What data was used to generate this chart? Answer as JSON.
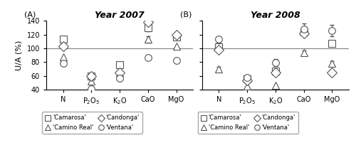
{
  "title_2007": "Year 2007",
  "title_2008": "Year 2008",
  "xlabel": [
    "N",
    "P$_2$O$_5$",
    "K$_2$O",
    "CaO",
    "MgO"
  ],
  "ylabel": "U/A (%)",
  "ylim": [
    40,
    140
  ],
  "yticks": [
    40,
    60,
    80,
    100,
    120,
    140
  ],
  "hline": 100,
  "data_2007": {
    "Camarosa": {
      "values": [
        113,
        60,
        76,
        130,
        116
      ],
      "yerr": [
        0,
        0,
        0,
        5,
        0
      ]
    },
    "Camino Real": {
      "values": [
        88,
        52,
        65,
        113,
        103
      ],
      "yerr": [
        0,
        0,
        0,
        5,
        0
      ]
    },
    "Candonga": {
      "values": [
        103,
        60,
        65,
        138,
        120
      ],
      "yerr": [
        0,
        0,
        0,
        0,
        0
      ]
    },
    "Ventana": {
      "values": [
        78,
        41,
        57,
        87,
        82
      ],
      "yerr": [
        0,
        0,
        0,
        0,
        0
      ]
    }
  },
  "data_2008": {
    "Camarosa": {
      "values": [
        102,
        55,
        67,
        124,
        107
      ],
      "yerr": [
        3,
        3,
        3,
        3,
        3
      ]
    },
    "Camino Real": {
      "values": [
        70,
        45,
        46,
        94,
        78
      ],
      "yerr": [
        3,
        0,
        0,
        3,
        3
      ]
    },
    "Candonga": {
      "values": [
        98,
        53,
        65,
        122,
        65
      ],
      "yerr": [
        3,
        3,
        3,
        0,
        0
      ]
    },
    "Ventana": {
      "values": [
        113,
        58,
        79,
        128,
        126
      ],
      "yerr": [
        5,
        3,
        5,
        8,
        8
      ]
    }
  },
  "markers": {
    "Camarosa": "s",
    "Camino Real": "^",
    "Candonga": "D",
    "Ventana": "o"
  },
  "marker_size": 7,
  "color": "#555555",
  "label_A": "(A)",
  "label_B": "(B)"
}
